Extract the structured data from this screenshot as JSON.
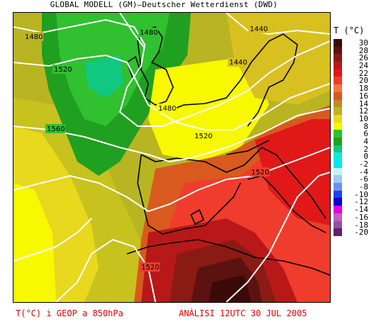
{
  "header": {
    "title": "GLOBAL MODELL (GM)—Deutscher Wetterdienst (DWD)"
  },
  "legend": {
    "title": "T (°C)",
    "entries": [
      {
        "label": "30",
        "color": "#3a0a08"
      },
      {
        "label": "28",
        "color": "#5c1210"
      },
      {
        "label": "26",
        "color": "#8a1a14"
      },
      {
        "label": "24",
        "color": "#b81818"
      },
      {
        "label": "22",
        "color": "#e01818"
      },
      {
        "label": "20",
        "color": "#f03c2c"
      },
      {
        "label": "18",
        "color": "#f07840"
      },
      {
        "label": "16",
        "color": "#d85a1e"
      },
      {
        "label": "14",
        "color": "#c08a22"
      },
      {
        "label": "12",
        "color": "#b8b422"
      },
      {
        "label": "10",
        "color": "#e8d81e"
      },
      {
        "label": "8",
        "color": "#f8f800"
      },
      {
        "label": "6",
        "color": "#30c030"
      },
      {
        "label": "4",
        "color": "#20a020"
      },
      {
        "label": "2",
        "color": "#10c880"
      },
      {
        "label": "0",
        "color": "#10e8d8"
      },
      {
        "label": "-2",
        "color": "#00e8f0"
      },
      {
        "label": "-4",
        "color": "#c8f0f8"
      },
      {
        "label": "-6",
        "color": "#a0c8f0"
      },
      {
        "label": "-8",
        "color": "#7090e8"
      },
      {
        "label": "-10",
        "color": "#2040f0"
      },
      {
        "label": "-12",
        "color": "#0000c8"
      },
      {
        "label": "-14",
        "color": "#e000e0"
      },
      {
        "label": "-16",
        "color": "#c060c0"
      },
      {
        "label": "-18",
        "color": "#9050a0"
      },
      {
        "label": "-20",
        "color": "#602070"
      }
    ]
  },
  "contour_labels": [
    "1480",
    "1480",
    "1440",
    "1440",
    "1520",
    "1480",
    "1560",
    "1520",
    "1520",
    "1520"
  ],
  "footer": {
    "left": "T(°C) i GEOP a 850hPa",
    "right": "ANÀLISI 12UTC 30 JUL 2005"
  }
}
